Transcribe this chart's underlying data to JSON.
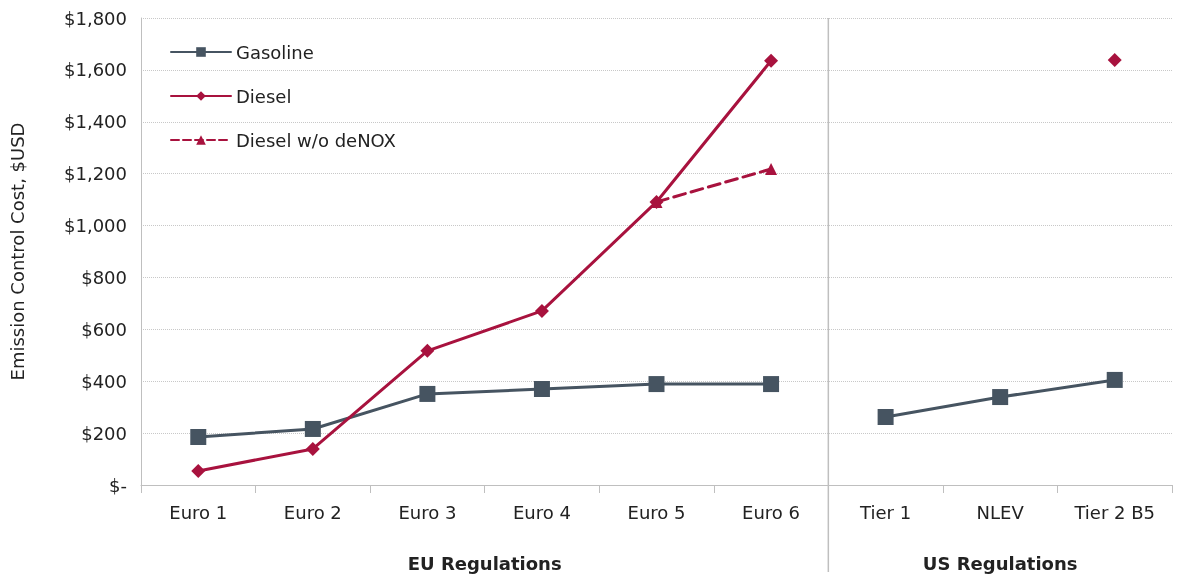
{
  "chart_data": {
    "type": "line",
    "ylabel": "Emission Control Cost, $USD",
    "categories": [
      "Euro 1",
      "Euro 2",
      "Euro 3",
      "Euro 4",
      "Euro 5",
      "Euro 6",
      "Tier 1",
      "NLEV",
      "Tier 2 B5"
    ],
    "series": [
      {
        "name": "Gasoline",
        "color": "#465461",
        "marker": "square",
        "line_style": "solid",
        "values": [
          185,
          216,
          351,
          370,
          389,
          389,
          262,
          339,
          405
        ]
      },
      {
        "name": "Diesel",
        "color": "#a8123e",
        "marker": "diamond",
        "line_style": "solid",
        "values": [
          54,
          139,
          517,
          671,
          1091,
          1635,
          null,
          null,
          1638
        ]
      },
      {
        "name": "Diesel w/o deNOX",
        "color": "#a8123e",
        "marker": "triangle",
        "line_style": "dashed",
        "values": [
          null,
          null,
          null,
          null,
          1091,
          1218,
          null,
          null,
          null
        ]
      }
    ],
    "ylim": [
      0,
      1800
    ],
    "yticks": [
      {
        "value": 0,
        "label": "$-"
      },
      {
        "value": 200,
        "label": "$200"
      },
      {
        "value": 400,
        "label": "$400"
      },
      {
        "value": 600,
        "label": "$600"
      },
      {
        "value": 800,
        "label": "$800"
      },
      {
        "value": 1000,
        "label": "$1,000"
      },
      {
        "value": 1200,
        "label": "$1,200"
      },
      {
        "value": 1400,
        "label": "$1,400"
      },
      {
        "value": 1600,
        "label": "$1,600"
      },
      {
        "value": 1800,
        "label": "$1,800"
      }
    ],
    "grid": "y",
    "legend": "top left",
    "ref_lines": [
      {
        "axis": "x",
        "value": "Tier 1",
        "color": "#bfbfbf",
        "line_style": "solid"
      }
    ],
    "annotations": [
      "EU Regulations",
      "US Regulations"
    ]
  }
}
